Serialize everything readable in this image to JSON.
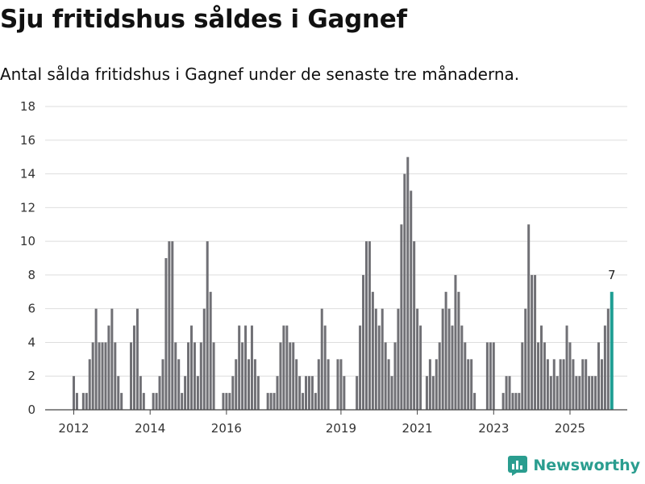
{
  "title": "Sju fritidshus såldes i Gagnef",
  "subtitle": "Antal sålda fritidshus i Gagnef under de senaste tre månaderna.",
  "brand": {
    "name": "Newsworthy",
    "icon": "newsworthy-logo-icon"
  },
  "colors": {
    "bar": "#707075",
    "highlight": "#1f9e93",
    "grid": "#dedede",
    "axis": "#444444",
    "brand": "#2a9d8f"
  },
  "chart_data": {
    "type": "bar",
    "title": "Sju fritidshus såldes i Gagnef",
    "xlabel": "",
    "ylabel": "",
    "ylim": [
      0,
      18
    ],
    "yticks": [
      0,
      2,
      4,
      6,
      8,
      10,
      12,
      14,
      16,
      18
    ],
    "xlim": [
      2011.25,
      2026.5
    ],
    "xticks": [
      {
        "label": "2012",
        "value": 2012.0
      },
      {
        "label": "2014",
        "value": 2014.0
      },
      {
        "label": "2016",
        "value": 2016.0
      },
      {
        "label": "2019",
        "value": 2019.0
      },
      {
        "label": "2021",
        "value": 2021.0
      },
      {
        "label": "2023",
        "value": 2023.0
      },
      {
        "label": "2025",
        "value": 2025.0
      }
    ],
    "start": 2012.0,
    "step": 0.0833333,
    "values": [
      2,
      1,
      0,
      1,
      1,
      3,
      4,
      6,
      4,
      4,
      4,
      5,
      6,
      4,
      2,
      1,
      0,
      0,
      4,
      5,
      6,
      2,
      1,
      0,
      0,
      1,
      1,
      2,
      3,
      9,
      10,
      10,
      4,
      3,
      1,
      2,
      4,
      5,
      4,
      2,
      4,
      6,
      10,
      7,
      4,
      0,
      0,
      1,
      1,
      1,
      2,
      3,
      5,
      4,
      5,
      3,
      5,
      3,
      2,
      0,
      0,
      1,
      1,
      1,
      2,
      4,
      5,
      5,
      4,
      4,
      3,
      2,
      1,
      2,
      2,
      2,
      1,
      3,
      6,
      5,
      3,
      0,
      0,
      3,
      3,
      2,
      0,
      0,
      0,
      2,
      5,
      8,
      10,
      10,
      7,
      6,
      5,
      6,
      4,
      3,
      2,
      4,
      6,
      11,
      14,
      15,
      13,
      10,
      6,
      5,
      0,
      2,
      3,
      2,
      3,
      4,
      6,
      7,
      6,
      5,
      8,
      7,
      5,
      4,
      3,
      3,
      1,
      0,
      0,
      0,
      4,
      4,
      4,
      0,
      0,
      1,
      2,
      2,
      1,
      1,
      1,
      4,
      6,
      11,
      8,
      8,
      4,
      5,
      4,
      3,
      2,
      3,
      2,
      3,
      3,
      5,
      4,
      3,
      2,
      2,
      3,
      3,
      2,
      2,
      2,
      4,
      3,
      5,
      6,
      7
    ],
    "highlight_last": true,
    "annotations": [
      {
        "label": "7",
        "target": "last-bar"
      }
    ]
  }
}
